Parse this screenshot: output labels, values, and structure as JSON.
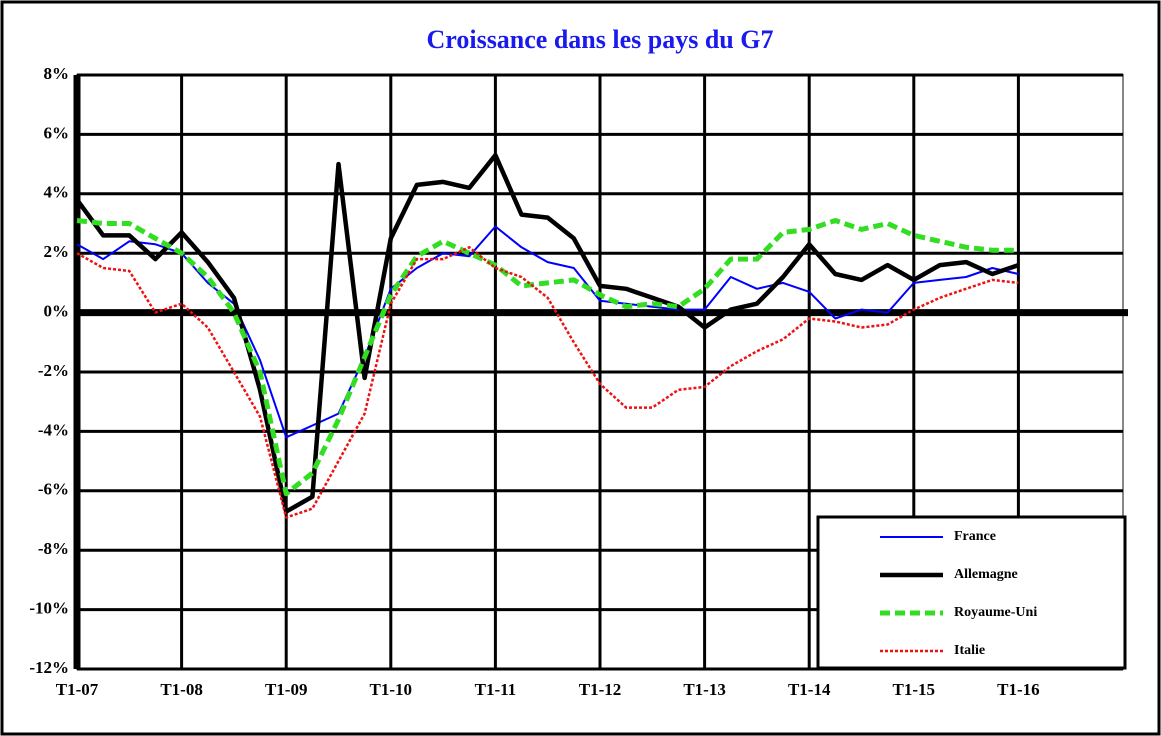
{
  "chart_data": {
    "type": "line",
    "title": "Croissance dans les pays du G7",
    "categories": [
      "T1-07",
      null,
      null,
      null,
      "T1-08",
      null,
      null,
      null,
      "T1-09",
      null,
      null,
      null,
      "T1-10",
      null,
      null,
      null,
      "T1-11",
      null,
      null,
      null,
      "T1-12",
      null,
      null,
      null,
      "T1-13",
      null,
      null,
      null,
      "T1-14",
      null,
      null,
      null,
      "T1-15",
      null,
      null,
      null,
      "T1-16",
      null,
      null,
      null,
      null
    ],
    "ylim": [
      -12,
      8
    ],
    "yticks": [
      {
        "value": 8,
        "label": "8%"
      },
      {
        "value": 6,
        "label": "6%"
      },
      {
        "value": 4,
        "label": "4%"
      },
      {
        "value": 2,
        "label": "2%"
      },
      {
        "value": 0,
        "label": "0%"
      },
      {
        "value": -2,
        "label": "-2%"
      },
      {
        "value": -4,
        "label": "-4%"
      },
      {
        "value": -6,
        "label": "-6%"
      },
      {
        "value": -8,
        "label": "-8%"
      },
      {
        "value": -10,
        "label": "-10%"
      },
      {
        "value": -12,
        "label": "-12%"
      }
    ],
    "grid": true,
    "legend": "lower right",
    "series": [
      {
        "name": "France",
        "color": "#0000ff",
        "values": [
          2.3,
          1.8,
          2.4,
          2.3,
          2.0,
          1.0,
          0.3,
          -1.6,
          -4.2,
          -3.8,
          -3.4,
          -1.5,
          0.8,
          1.5,
          2.0,
          1.9,
          2.9,
          2.2,
          1.7,
          1.5,
          0.4,
          0.3,
          0.2,
          0.1,
          0.1,
          1.2,
          0.8,
          1.0,
          0.7,
          -0.2,
          0.1,
          0.0,
          1.0,
          1.1,
          1.2,
          1.5,
          1.3,
          null,
          null,
          null,
          null
        ]
      },
      {
        "name": "Allemagne",
        "color": "#000000",
        "values": [
          3.8,
          2.6,
          2.6,
          1.8,
          2.7,
          1.7,
          0.5,
          -2.6,
          -6.7,
          -6.2,
          5.0,
          -2.2,
          2.5,
          4.3,
          4.4,
          4.2,
          5.3,
          3.3,
          3.2,
          2.5,
          0.9,
          0.8,
          0.5,
          0.2,
          -0.5,
          0.1,
          0.3,
          1.2,
          2.3,
          1.3,
          1.1,
          1.6,
          1.1,
          1.6,
          1.7,
          1.3,
          1.6,
          null,
          null,
          null,
          null
        ]
      },
      {
        "name": "Royaume-Uni",
        "color": "#33dd22",
        "values": [
          3.1,
          3.0,
          3.0,
          2.5,
          2.0,
          1.2,
          0.0,
          -2.0,
          -6.1,
          -5.4,
          -3.6,
          -1.5,
          0.6,
          1.9,
          2.4,
          2.0,
          1.6,
          0.9,
          1.0,
          1.1,
          0.6,
          0.2,
          0.3,
          0.2,
          0.8,
          1.8,
          1.8,
          2.7,
          2.8,
          3.1,
          2.8,
          3.0,
          2.6,
          2.4,
          2.2,
          2.1,
          2.1,
          null,
          null,
          null,
          null
        ]
      },
      {
        "name": "Italie",
        "color": "#ee1111",
        "values": [
          2.0,
          1.5,
          1.4,
          0.0,
          0.3,
          -0.5,
          -2.0,
          -3.5,
          -6.9,
          -6.6,
          -5.0,
          -3.4,
          0.3,
          1.8,
          1.8,
          2.2,
          1.5,
          1.2,
          0.5,
          -1.0,
          -2.4,
          -3.2,
          -3.2,
          -2.6,
          -2.5,
          -1.8,
          -1.3,
          -0.9,
          -0.2,
          -0.3,
          -0.5,
          -0.4,
          0.1,
          0.5,
          0.8,
          1.1,
          1.0,
          null,
          null,
          null,
          null
        ]
      }
    ]
  }
}
